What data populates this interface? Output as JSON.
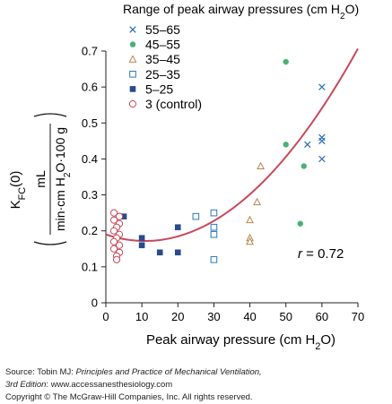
{
  "chart_data": {
    "type": "scatter",
    "legend_title": "Range of peak airway pressures (cm H2O)",
    "legend_position": "top-left",
    "xlabel": "Peak airway pressure (cm H2O)",
    "ylabel_top": "KFC(0)",
    "ylabel_fraction_numerator": "mL",
    "ylabel_fraction_denominator": "min·cm H2O·100 g",
    "xlim": [
      0,
      70
    ],
    "ylim": [
      0,
      0.7
    ],
    "xticks": [
      "0",
      "10",
      "20",
      "30",
      "40",
      "50",
      "60",
      "70"
    ],
    "yticks": [
      "0",
      "0.1",
      "0.2",
      "0.3",
      "0.4",
      "0.5",
      "0.6",
      "0.7"
    ],
    "annotation": "r = 0.72",
    "fit_color": "#c8485a",
    "series": [
      {
        "name": "55–65",
        "marker": "x",
        "color": "#2a6db5",
        "points": [
          [
            56,
            0.44
          ],
          [
            60,
            0.6
          ],
          [
            60,
            0.46
          ],
          [
            60,
            0.45
          ],
          [
            60,
            0.4
          ]
        ]
      },
      {
        "name": "45–55",
        "marker": "dot",
        "color": "#4caf73",
        "points": [
          [
            50,
            0.67
          ],
          [
            50,
            0.44
          ],
          [
            55,
            0.38
          ],
          [
            54,
            0.22
          ]
        ]
      },
      {
        "name": "35–45",
        "marker": "triangle",
        "color": "#b8864a",
        "points": [
          [
            43,
            0.38
          ],
          [
            42,
            0.28
          ],
          [
            40,
            0.23
          ],
          [
            40,
            0.18
          ],
          [
            40,
            0.17
          ]
        ]
      },
      {
        "name": "25–35",
        "marker": "open-square",
        "color": "#2a7ab8",
        "points": [
          [
            25,
            0.24
          ],
          [
            30,
            0.25
          ],
          [
            30,
            0.21
          ],
          [
            30,
            0.19
          ],
          [
            30,
            0.12
          ]
        ]
      },
      {
        "name": "5–25",
        "marker": "filled-square",
        "color": "#2b4a8c",
        "points": [
          [
            5,
            0.24
          ],
          [
            10,
            0.18
          ],
          [
            10,
            0.16
          ],
          [
            15,
            0.14
          ],
          [
            20,
            0.21
          ],
          [
            20,
            0.14
          ]
        ]
      },
      {
        "name": "3 (control)",
        "marker": "open-circle",
        "color": "#c8485a",
        "points": [
          [
            3,
            0.25
          ],
          [
            3,
            0.24
          ],
          [
            3,
            0.23
          ],
          [
            3,
            0.22
          ],
          [
            3,
            0.21
          ],
          [
            3,
            0.2
          ],
          [
            3,
            0.19
          ],
          [
            3,
            0.18
          ],
          [
            3,
            0.17
          ],
          [
            3,
            0.16
          ],
          [
            3,
            0.15
          ],
          [
            3,
            0.14
          ],
          [
            3,
            0.13
          ],
          [
            3,
            0.12
          ]
        ]
      }
    ]
  },
  "source": {
    "line1_prefix": "Source: Tobin MJ: ",
    "line1_title": "Principles and Practice of Mechanical Ventilation,",
    "line2_edition": "3rd Edition",
    "line2_rest": ": www.accessanesthesiology.com",
    "line3": "Copyright © The McGraw-Hill Companies, Inc. All rights reserved."
  }
}
